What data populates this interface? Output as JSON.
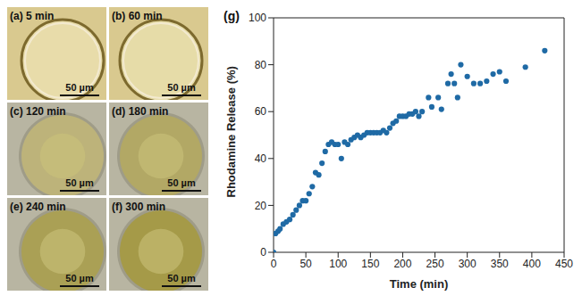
{
  "micrographs": [
    {
      "label": "(a) 5 min",
      "scale_bar": "50 µm"
    },
    {
      "label": "(b) 60 min",
      "scale_bar": "50 µm"
    },
    {
      "label": "(c) 120 min",
      "scale_bar": "50 µm"
    },
    {
      "label": "(d) 180 min",
      "scale_bar": "50 µm"
    },
    {
      "label": "(e) 240 min",
      "scale_bar": "50 µm"
    },
    {
      "label": "(f) 300 min",
      "scale_bar": "50 µm"
    }
  ],
  "chart_data": {
    "type": "scatter",
    "title": "(g)",
    "x_label": "Time (min)",
    "y_label": "Rhodamine Release (%)",
    "x": [
      0,
      3,
      7,
      10,
      15,
      20,
      25,
      30,
      35,
      40,
      45,
      50,
      55,
      60,
      65,
      70,
      75,
      80,
      85,
      90,
      95,
      100,
      105,
      110,
      115,
      120,
      125,
      130,
      135,
      140,
      145,
      150,
      155,
      160,
      165,
      170,
      175,
      180,
      185,
      190,
      195,
      200,
      205,
      210,
      215,
      220,
      225,
      230,
      240,
      245,
      255,
      260,
      270,
      275,
      280,
      285,
      290,
      300,
      310,
      320,
      330,
      340,
      350,
      360,
      390,
      420
    ],
    "values": [
      0,
      8,
      9,
      10,
      12,
      13,
      14,
      16,
      18,
      20,
      22,
      22,
      25,
      28,
      34,
      33,
      38,
      43,
      46,
      47,
      46,
      46,
      40,
      47,
      46,
      48,
      49,
      50,
      49,
      50,
      51,
      51,
      51,
      51,
      51,
      52,
      51,
      53,
      55,
      56,
      58,
      58,
      58,
      59,
      59,
      60,
      58,
      60,
      66,
      62,
      66,
      61,
      72,
      76,
      72,
      66,
      80,
      75,
      72,
      72,
      73,
      76,
      77,
      73,
      79,
      86
    ],
    "color": "#1f6aa5",
    "marker": "circle",
    "xlim": [
      0,
      450
    ],
    "xticks": [
      0,
      50,
      100,
      150,
      200,
      250,
      300,
      350,
      400,
      450
    ],
    "ylim": [
      0,
      100
    ],
    "yticks": [
      0,
      20,
      40,
      60,
      80,
      100
    ]
  }
}
